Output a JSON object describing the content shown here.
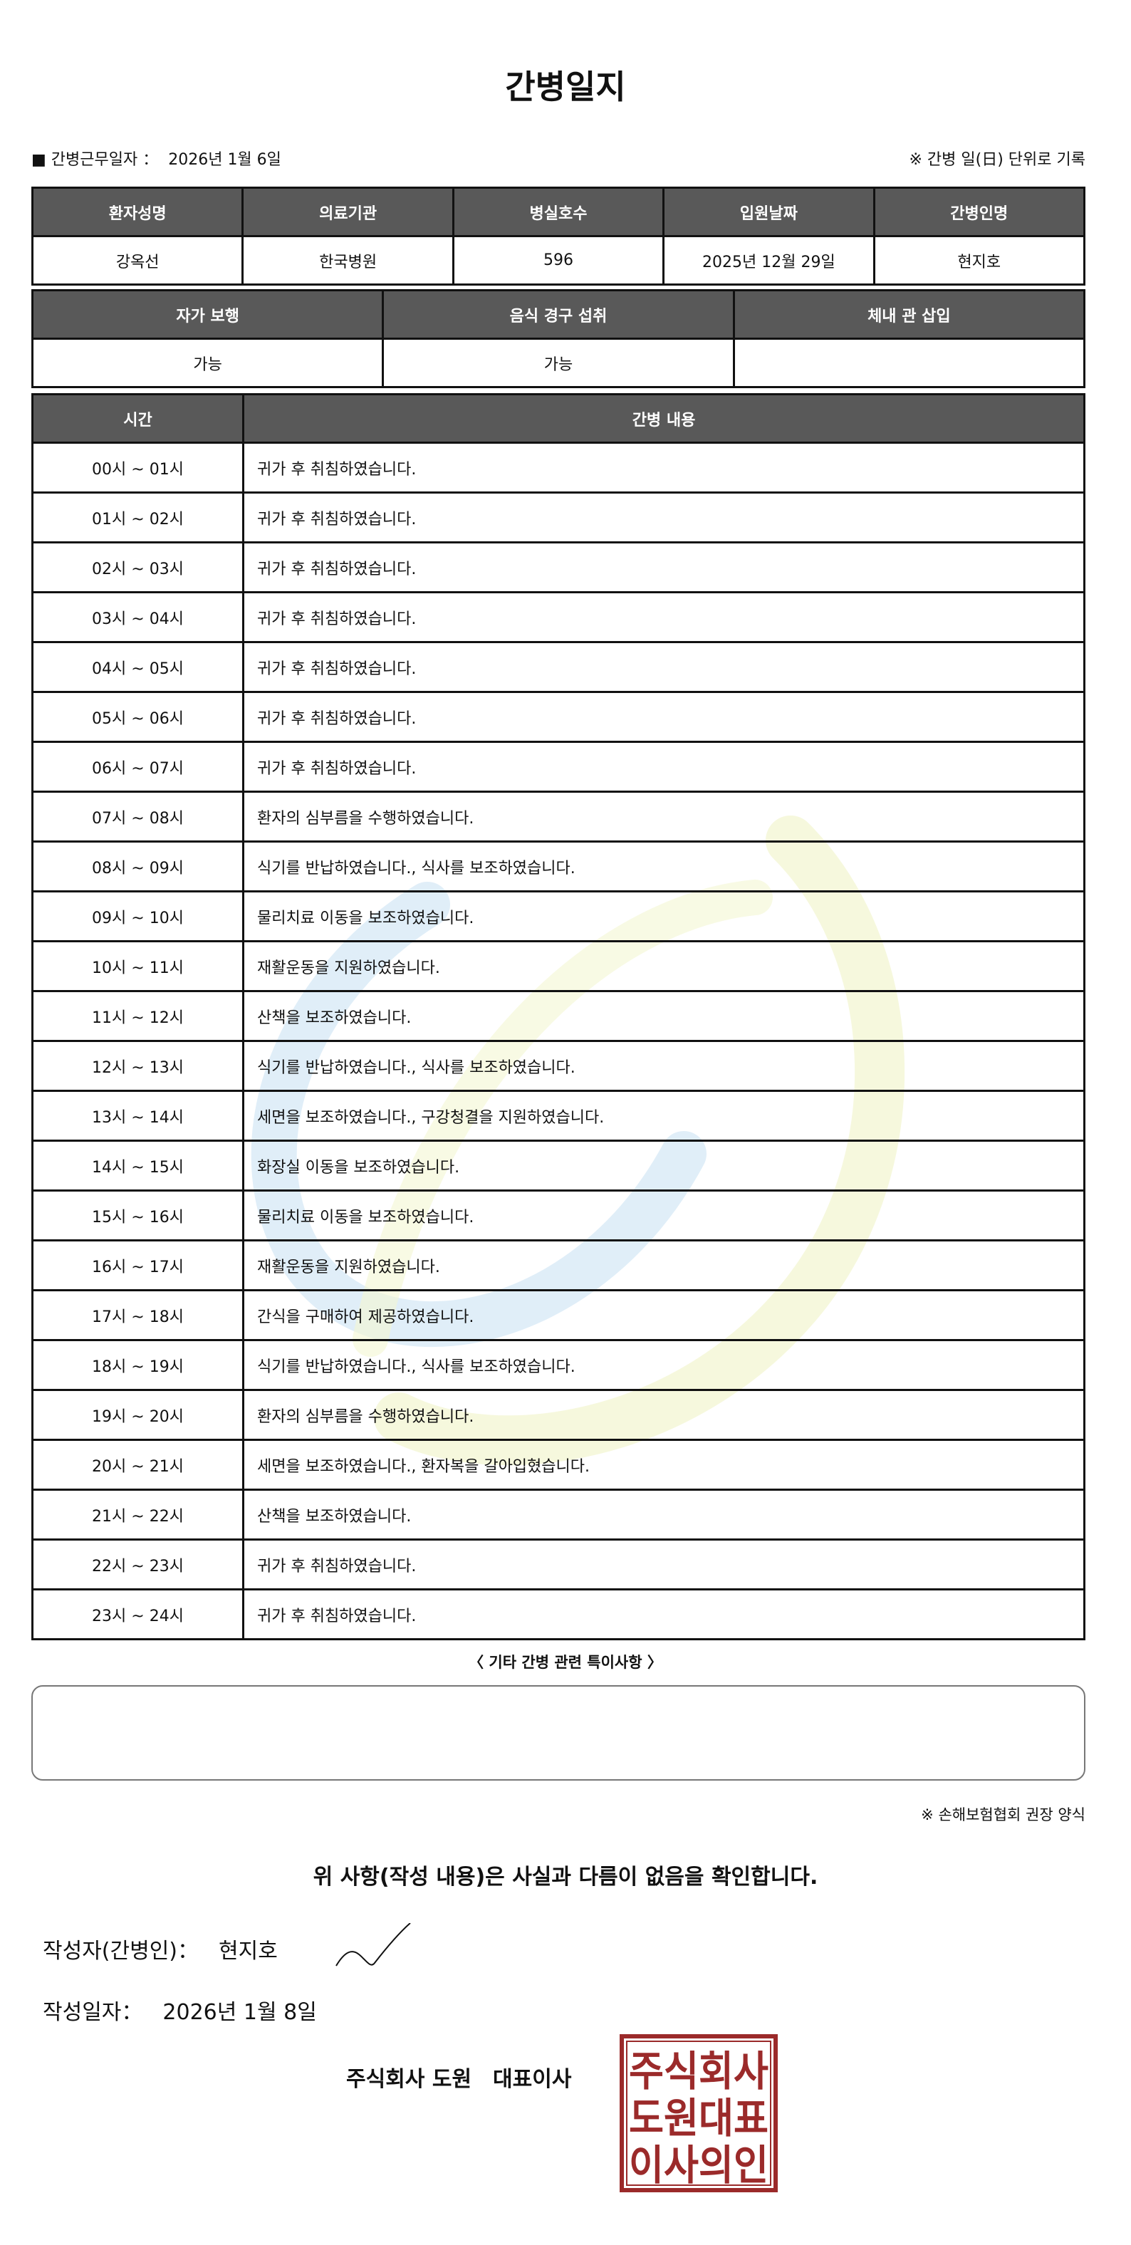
{
  "title": "간병일지",
  "meta": {
    "work_date_label": "■ 간병근무일자 ：",
    "work_date": "2026년 1월 6일",
    "note": "※ 간병 일(日) 단위로 기록"
  },
  "info_table": {
    "headers": [
      "환자성명",
      "의료기관",
      "병실호수",
      "입원날짜",
      "간병인명"
    ],
    "values": [
      "강옥선",
      "한국병원",
      "596",
      "2025년 12월 29일",
      "현지호"
    ]
  },
  "status_table": {
    "headers": [
      "자가 보행",
      "음식 경구 섭취",
      "체내 관 삽입"
    ],
    "values": [
      "가능",
      "가능",
      ""
    ]
  },
  "log_table": {
    "headers": [
      "시간",
      "간병 내용"
    ],
    "rows": [
      [
        "00시 ~ 01시",
        "귀가 후 취침하였습니다."
      ],
      [
        "01시 ~ 02시",
        "귀가 후 취침하였습니다."
      ],
      [
        "02시 ~ 03시",
        "귀가 후 취침하였습니다."
      ],
      [
        "03시 ~ 04시",
        "귀가 후 취침하였습니다."
      ],
      [
        "04시 ~ 05시",
        "귀가 후 취침하였습니다."
      ],
      [
        "05시 ~ 06시",
        "귀가 후 취침하였습니다."
      ],
      [
        "06시 ~ 07시",
        "귀가 후 취침하였습니다."
      ],
      [
        "07시 ~ 08시",
        "환자의 심부름을 수행하였습니다."
      ],
      [
        "08시 ~ 09시",
        "식기를 반납하였습니다., 식사를 보조하였습니다."
      ],
      [
        "09시 ~ 10시",
        "물리치료 이동을 보조하였습니다."
      ],
      [
        "10시 ~ 11시",
        "재활운동을 지원하였습니다."
      ],
      [
        "11시 ~ 12시",
        "산책을 보조하였습니다."
      ],
      [
        "12시 ~ 13시",
        "식기를 반납하였습니다., 식사를 보조하였습니다."
      ],
      [
        "13시 ~ 14시",
        "세면을 보조하였습니다., 구강청결을 지원하였습니다."
      ],
      [
        "14시 ~ 15시",
        "화장실 이동을 보조하였습니다."
      ],
      [
        "15시 ~ 16시",
        "물리치료 이동을 보조하였습니다."
      ],
      [
        "16시 ~ 17시",
        "재활운동을 지원하였습니다."
      ],
      [
        "17시 ~ 18시",
        "간식을 구매하여 제공하였습니다."
      ],
      [
        "18시 ~ 19시",
        "식기를 반납하였습니다., 식사를 보조하였습니다."
      ],
      [
        "19시 ~ 20시",
        "환자의 심부름을 수행하였습니다."
      ],
      [
        "20시 ~ 21시",
        "세면을 보조하였습니다., 환자복을 갈아입혔습니다."
      ],
      [
        "21시 ~ 22시",
        "산책을 보조하였습니다."
      ],
      [
        "22시 ~ 23시",
        "귀가 후 취침하였습니다."
      ],
      [
        "23시 ~ 24시",
        "귀가 후 취침하였습니다."
      ]
    ]
  },
  "special_notes": {
    "title": "〈 기타 간병 관련 특이사항 〉",
    "content": ""
  },
  "form_note": "※ 손해보험협회 권장 양식",
  "confirmation": "위 사항(작성 내용)은 사실과 다름이 없음을 확인합니다.",
  "writer": {
    "label": "작성자(간병인)：",
    "name": "현지호"
  },
  "written_date": {
    "label": "작성일자：",
    "value": "2026년 1월 8일"
  },
  "company": {
    "name": "주식회사 도원",
    "title": "대표이사"
  },
  "stamp": {
    "text": [
      "주식회사",
      "도원대표",
      "이사의인"
    ],
    "color": "#9b2a2a"
  },
  "colors": {
    "header_bg": "#595959",
    "watermark_blue": "#d6e8f5",
    "watermark_yellow": "#f6f8dc"
  }
}
